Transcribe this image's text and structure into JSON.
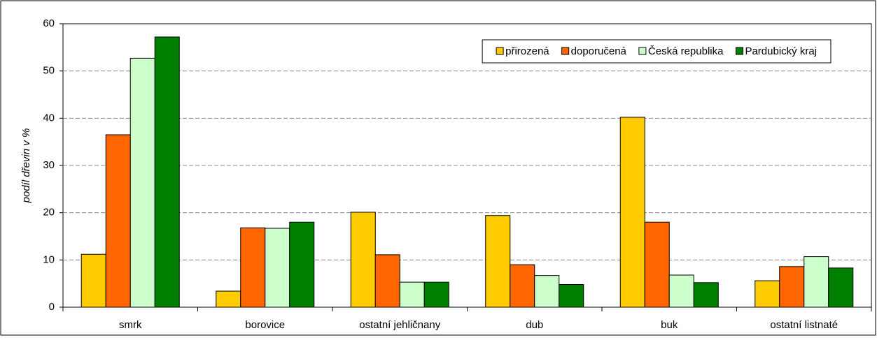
{
  "chart_data": {
    "type": "bar",
    "y_label": "podíl dřevin v %",
    "categories": [
      "smrk",
      "borovice",
      "ostatní jehličnany",
      "dub",
      "buk",
      "ostatní listnaté"
    ],
    "series": [
      {
        "name": "přirozená",
        "color": "#ffcc00",
        "values": [
          11.2,
          3.4,
          20.1,
          19.4,
          40.2,
          5.6
        ]
      },
      {
        "name": "doporučená",
        "color": "#ff6600",
        "values": [
          36.5,
          16.8,
          11.1,
          9.0,
          18.0,
          8.6
        ]
      },
      {
        "name": "Česká republika",
        "color": "#ccffcc",
        "values": [
          52.7,
          16.7,
          5.3,
          6.7,
          6.8,
          10.7
        ]
      },
      {
        "name": "Pardubický kraj",
        "color": "#008000",
        "values": [
          57.2,
          18.0,
          5.3,
          4.8,
          5.2,
          8.3
        ]
      }
    ],
    "ylim": [
      0,
      60
    ],
    "yticks": [
      0,
      10,
      20,
      30,
      40,
      50,
      60
    ],
    "grid": true,
    "legend": "top-right"
  }
}
